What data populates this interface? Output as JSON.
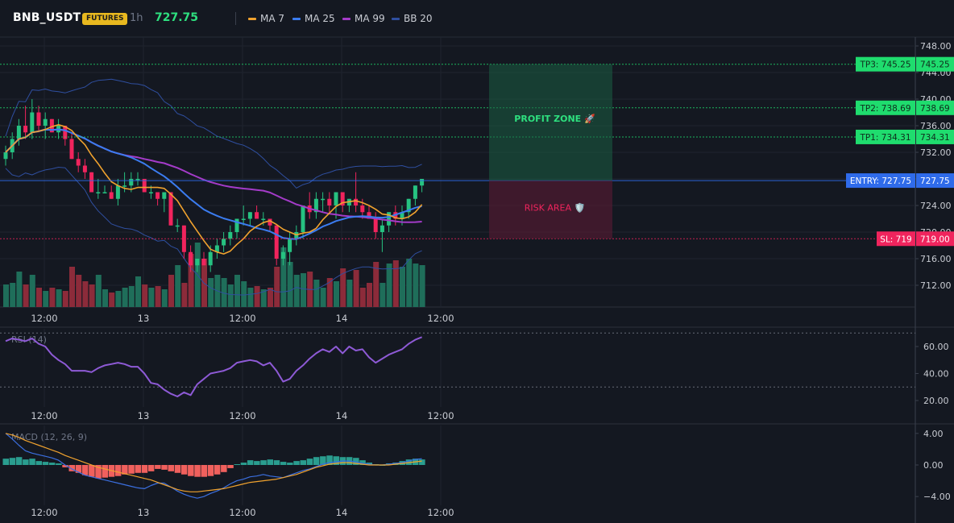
{
  "header": {
    "symbol": "BNB_USDT",
    "badge": "FUTURES",
    "timeframe": "1h",
    "last_price": "727.75",
    "legend": [
      {
        "label": "MA 7",
        "color": "#f0a22e"
      },
      {
        "label": "MA 25",
        "color": "#3b7cf0"
      },
      {
        "label": "MA 99",
        "color": "#a43bc9"
      },
      {
        "label": "BB 20",
        "color": "#2f4fa0"
      }
    ]
  },
  "time_labels": [
    "12:00",
    "13",
    "12:00",
    "14",
    "12:00"
  ],
  "price_panel": {
    "ticks": [
      "748.00",
      "744.00",
      "740.00",
      "736.00",
      "732.00",
      "728.00",
      "724.00",
      "720.00",
      "716.00",
      "712.00"
    ],
    "levels": [
      {
        "label": "TP3: 745.25",
        "value": "745.25",
        "kind": "tp"
      },
      {
        "label": "TP2: 738.69",
        "value": "738.69",
        "kind": "tp"
      },
      {
        "label": "TP1: 734.31",
        "value": "734.31",
        "kind": "tp"
      },
      {
        "label": "ENTRY: 727.75",
        "value": "727.75",
        "kind": "entry"
      },
      {
        "label": "SL: 719",
        "value": "719.00",
        "kind": "sl"
      }
    ],
    "profit_zone_label": "PROFIT ZONE 🚀",
    "risk_area_label": "RISK AREA 🛡️"
  },
  "rsi_panel": {
    "title": "RSI (14)",
    "ticks": [
      "60.00",
      "40.00",
      "20.00"
    ]
  },
  "macd_panel": {
    "title": "MACD (12, 26, 9)",
    "ticks": [
      "4.00",
      "0.00",
      "−4.00"
    ]
  },
  "colors": {
    "up": "#26c281",
    "down": "#f0245d",
    "tp": "#1fdc6e",
    "entry": "#2f6bea",
    "sl": "#f0245d",
    "rsi": "#8e5ad6",
    "macd_line": "#3b6fe0",
    "signal_line": "#f0a22e"
  },
  "chart_data": {
    "type": "candlestick",
    "series": [
      {
        "name": "MA 7"
      },
      {
        "name": "MA 25"
      },
      {
        "name": "MA 99"
      },
      {
        "name": "BB 20"
      }
    ],
    "ylim": [
      709,
      749
    ],
    "candles": [
      [
        731,
        733,
        730,
        732
      ],
      [
        732,
        735,
        731,
        734
      ],
      [
        734,
        737,
        733,
        736
      ],
      [
        736,
        739,
        734,
        735
      ],
      [
        735,
        740,
        734,
        738
      ],
      [
        738,
        739,
        735,
        736
      ],
      [
        736,
        738,
        734,
        737
      ],
      [
        737,
        737,
        735,
        735
      ],
      [
        735,
        737,
        734,
        736
      ],
      [
        736,
        736,
        733,
        734
      ],
      [
        734,
        735,
        731,
        731
      ],
      [
        731,
        732,
        729,
        730
      ],
      [
        730,
        731,
        728,
        729
      ],
      [
        729,
        729,
        726,
        726
      ],
      [
        726,
        728,
        725,
        726
      ],
      [
        726,
        727,
        726,
        726
      ],
      [
        726,
        727,
        725,
        725
      ],
      [
        725,
        728,
        724,
        727
      ],
      [
        727,
        729,
        726,
        727
      ],
      [
        727,
        729,
        726,
        728
      ],
      [
        728,
        729,
        727,
        728
      ],
      [
        728,
        728,
        726,
        726
      ],
      [
        726,
        727,
        725,
        726
      ],
      [
        726,
        726,
        724,
        725
      ],
      [
        725,
        726,
        723,
        726
      ],
      [
        726,
        726,
        721,
        721
      ],
      [
        721,
        722,
        720,
        721
      ],
      [
        721,
        721,
        716,
        717
      ],
      [
        717,
        718,
        714,
        715
      ],
      [
        715,
        716,
        714,
        716
      ],
      [
        716,
        717,
        715,
        715
      ],
      [
        715,
        718,
        714,
        717
      ],
      [
        717,
        719,
        716,
        718
      ],
      [
        718,
        720,
        717,
        719
      ],
      [
        719,
        721,
        718,
        720
      ],
      [
        720,
        722,
        719,
        722
      ],
      [
        722,
        724,
        721,
        722
      ],
      [
        722,
        723,
        721,
        723
      ],
      [
        723,
        724,
        722,
        722
      ],
      [
        722,
        723,
        721,
        722
      ],
      [
        722,
        722,
        720,
        721
      ],
      [
        721,
        721,
        715,
        716
      ],
      [
        716,
        718,
        715,
        717
      ],
      [
        717,
        720,
        715,
        719
      ],
      [
        719,
        721,
        718,
        720
      ],
      [
        720,
        724,
        719,
        724
      ],
      [
        724,
        726,
        722,
        723
      ],
      [
        723,
        726,
        722,
        725
      ],
      [
        725,
        726,
        723,
        725
      ],
      [
        725,
        726,
        723,
        724
      ],
      [
        724,
        726,
        722,
        726
      ],
      [
        726,
        726,
        723,
        724
      ],
      [
        724,
        725,
        723,
        725
      ],
      [
        725,
        729,
        723,
        724
      ],
      [
        724,
        725,
        722,
        723
      ],
      [
        723,
        724,
        722,
        722
      ],
      [
        722,
        723,
        719,
        720
      ],
      [
        720,
        722,
        717,
        721
      ],
      [
        721,
        723,
        720,
        723
      ],
      [
        723,
        724,
        721,
        722
      ],
      [
        722,
        724,
        721,
        723
      ],
      [
        723,
        725,
        722,
        725
      ],
      [
        725,
        727,
        724,
        727
      ],
      [
        727,
        728,
        726,
        728
      ]
    ],
    "volume": [
      14,
      15,
      22,
      14,
      20,
      12,
      10,
      12,
      11,
      10,
      25,
      20,
      16,
      14,
      20,
      11,
      9,
      10,
      12,
      13,
      19,
      14,
      12,
      13,
      11,
      20,
      26,
      15,
      33,
      40,
      30,
      18,
      20,
      18,
      14,
      20,
      16,
      12,
      13,
      11,
      12,
      25,
      37,
      28,
      20,
      21,
      22,
      17,
      12,
      18,
      16,
      24,
      17,
      23,
      12,
      15,
      28,
      15,
      27,
      29,
      25,
      30,
      27,
      26
    ],
    "rsi": [
      64,
      66,
      65,
      64,
      66,
      62,
      60,
      54,
      50,
      47,
      42,
      42,
      42,
      41,
      44,
      46,
      47,
      48,
      47,
      45,
      45,
      40,
      33,
      32,
      28,
      25,
      23,
      26,
      24,
      32,
      36,
      40,
      41,
      42,
      44,
      48,
      49,
      50,
      49,
      46,
      48,
      42,
      34,
      36,
      42,
      46,
      51,
      55,
      58,
      56,
      60,
      55,
      60,
      57,
      58,
      52,
      48,
      51,
      54,
      56,
      58,
      62,
      65,
      67
    ],
    "macd_hist": [
      0.8,
      0.9,
      1.0,
      0.7,
      0.8,
      0.5,
      0.4,
      0.3,
      0.2,
      -0.3,
      -0.8,
      -1.0,
      -1.3,
      -1.5,
      -1.7,
      -1.6,
      -1.5,
      -1.4,
      -1.2,
      -1.1,
      -1.0,
      -1.0,
      -0.8,
      -0.5,
      -0.6,
      -0.8,
      -1.0,
      -1.2,
      -1.4,
      -1.5,
      -1.5,
      -1.4,
      -1.2,
      -0.9,
      -0.4,
      0.1,
      0.3,
      0.6,
      0.5,
      0.6,
      0.7,
      0.6,
      0.4,
      0.3,
      0.5,
      0.6,
      0.8,
      1.0,
      1.1,
      1.2,
      1.1,
      1.0,
      1.0,
      0.9,
      0.6,
      0.3,
      0.1,
      0.0,
      0.2,
      0.3,
      0.5,
      0.7,
      0.8,
      0.7
    ],
    "macd_line": [
      4,
      3.3,
      2.5,
      1.8,
      1.5,
      1.3,
      1.1,
      0.9,
      0.6,
      0.0,
      -0.5,
      -0.9,
      -1.3,
      -1.5,
      -1.7,
      -1.9,
      -2.1,
      -2.3,
      -2.5,
      -2.7,
      -2.9,
      -3.0,
      -2.6,
      -2.3,
      -2.3,
      -2.8,
      -3.3,
      -3.7,
      -4.0,
      -4.2,
      -4.0,
      -3.6,
      -3.3,
      -2.9,
      -2.4,
      -2.0,
      -1.8,
      -1.5,
      -1.4,
      -1.2,
      -1.4,
      -1.5,
      -1.6,
      -1.3,
      -1.0,
      -0.7,
      -0.5,
      -0.2,
      0.1,
      0.3,
      0.4,
      0.5,
      0.5,
      0.4,
      0.2,
      0.1,
      0.0,
      0.0,
      0.1,
      0.2,
      0.3,
      0.5,
      0.7,
      0.8
    ],
    "signal_line": [
      4,
      3.8,
      3.5,
      3.1,
      2.8,
      2.5,
      2.2,
      1.9,
      1.6,
      1.2,
      0.9,
      0.6,
      0.3,
      0.0,
      -0.3,
      -0.5,
      -0.7,
      -0.9,
      -1.1,
      -1.3,
      -1.5,
      -1.7,
      -1.9,
      -2.2,
      -2.5,
      -2.8,
      -3.1,
      -3.3,
      -3.4,
      -3.4,
      -3.3,
      -3.2,
      -3.1,
      -3.0,
      -2.8,
      -2.6,
      -2.4,
      -2.2,
      -2.1,
      -2.0,
      -1.9,
      -1.8,
      -1.6,
      -1.4,
      -1.2,
      -0.9,
      -0.6,
      -0.3,
      -0.1,
      0.1,
      0.2,
      0.3,
      0.3,
      0.2,
      0.1,
      0.0,
      0.0,
      0.0,
      0.0,
      0.1,
      0.2,
      0.3,
      0.4,
      0.5
    ]
  }
}
